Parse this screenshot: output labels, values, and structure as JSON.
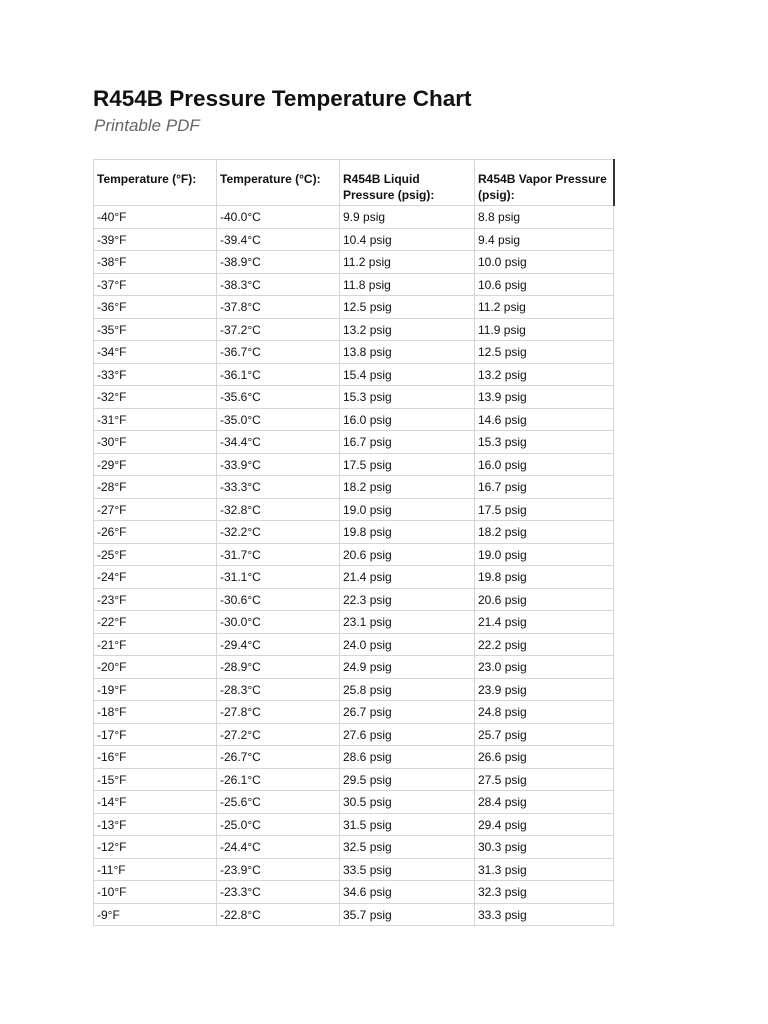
{
  "title": "R454B Pressure Temperature Chart",
  "subtitle": "Printable PDF",
  "table": {
    "headers": [
      "Temperature (°F):",
      "Temperature (°C):",
      "R454B Liquid Pressure (psig):",
      "R454B Vapor Pressure (psig):"
    ],
    "rows": [
      [
        "-40°F",
        "-40.0°C",
        "9.9 psig",
        "8.8 psig"
      ],
      [
        "-39°F",
        "-39.4°C",
        "10.4 psig",
        "9.4 psig"
      ],
      [
        "-38°F",
        "-38.9°C",
        "11.2 psig",
        "10.0 psig"
      ],
      [
        "-37°F",
        "-38.3°C",
        "11.8 psig",
        "10.6 psig"
      ],
      [
        "-36°F",
        "-37.8°C",
        "12.5 psig",
        "11.2 psig"
      ],
      [
        "-35°F",
        "-37.2°C",
        "13.2 psig",
        "11.9 psig"
      ],
      [
        "-34°F",
        "-36.7°C",
        "13.8 psig",
        "12.5 psig"
      ],
      [
        "-33°F",
        "-36.1°C",
        "15.4 psig",
        "13.2 psig"
      ],
      [
        "-32°F",
        "-35.6°C",
        "15.3 psig",
        "13.9 psig"
      ],
      [
        "-31°F",
        "-35.0°C",
        "16.0 psig",
        "14.6 psig"
      ],
      [
        "-30°F",
        "-34.4°C",
        "16.7 psig",
        "15.3 psig"
      ],
      [
        "-29°F",
        "-33.9°C",
        "17.5 psig",
        "16.0 psig"
      ],
      [
        "-28°F",
        "-33.3°C",
        "18.2 psig",
        "16.7 psig"
      ],
      [
        "-27°F",
        "-32.8°C",
        "19.0 psig",
        "17.5 psig"
      ],
      [
        "-26°F",
        "-32.2°C",
        "19.8 psig",
        "18.2 psig"
      ],
      [
        "-25°F",
        "-31.7°C",
        "20.6 psig",
        "19.0 psig"
      ],
      [
        "-24°F",
        "-31.1°C",
        "21.4 psig",
        "19.8 psig"
      ],
      [
        "-23°F",
        "-30.6°C",
        "22.3 psig",
        "20.6 psig"
      ],
      [
        "-22°F",
        "-30.0°C",
        "23.1 psig",
        "21.4 psig"
      ],
      [
        "-21°F",
        "-29.4°C",
        "24.0 psig",
        "22.2 psig"
      ],
      [
        "-20°F",
        "-28.9°C",
        "24.9 psig",
        "23.0 psig"
      ],
      [
        "-19°F",
        "-28.3°C",
        "25.8 psig",
        "23.9 psig"
      ],
      [
        "-18°F",
        "-27.8°C",
        "26.7 psig",
        "24.8 psig"
      ],
      [
        "-17°F",
        "-27.2°C",
        "27.6 psig",
        "25.7 psig"
      ],
      [
        "-16°F",
        "-26.7°C",
        "28.6 psig",
        "26.6 psig"
      ],
      [
        "-15°F",
        "-26.1°C",
        "29.5 psig",
        "27.5 psig"
      ],
      [
        "-14°F",
        "-25.6°C",
        "30.5 psig",
        "28.4 psig"
      ],
      [
        "-13°F",
        "-25.0°C",
        "31.5 psig",
        "29.4 psig"
      ],
      [
        "-12°F",
        "-24.4°C",
        "32.5 psig",
        "30.3 psig"
      ],
      [
        "-11°F",
        "-23.9°C",
        "33.5 psig",
        "31.3 psig"
      ],
      [
        "-10°F",
        "-23.3°C",
        "34.6 psig",
        "32.3 psig"
      ],
      [
        "-9°F",
        "-22.8°C",
        "35.7 psig",
        "33.3 psig"
      ]
    ]
  }
}
